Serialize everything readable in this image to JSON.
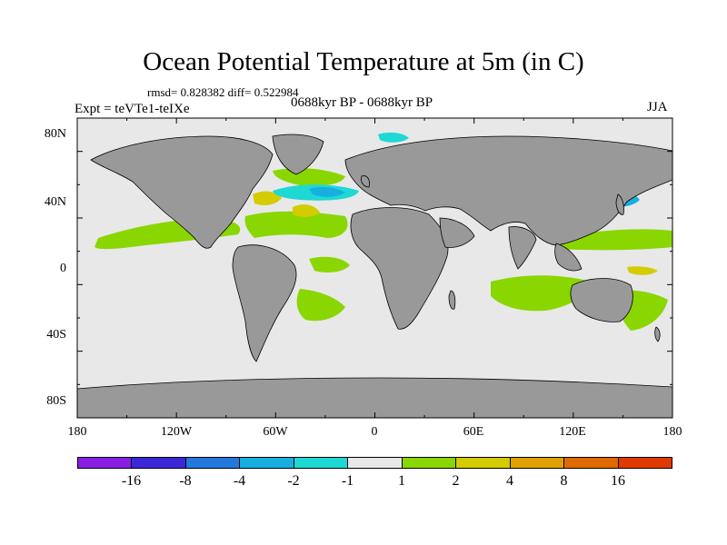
{
  "title": "Ocean Potential Temperature at 5m (in C)",
  "stats": "rmsd= 0.828382 diff= 0.522984",
  "period": "0688kyr BP - 0688kyr BP",
  "experiment": "Expt = teVTe1-teIXe",
  "season": "JJA",
  "axes": {
    "y_labels": [
      "80N",
      "40N",
      "0",
      "40S",
      "80S"
    ],
    "x_labels": [
      "180",
      "120W",
      "60W",
      "0",
      "60E",
      "120E",
      "180"
    ]
  },
  "colors": {
    "land": "#999999",
    "neutral_ocean": "#e8e8e8"
  },
  "colorbar": {
    "boxes": [
      "#8a1ee6",
      "#3c28d8",
      "#2478dc",
      "#18aee0",
      "#1ed8d4",
      "#e8e8e8",
      "#8ad600",
      "#d4cc00",
      "#e0a000",
      "#e06a00",
      "#e03a00"
    ],
    "labels": [
      "-16",
      "-8",
      "-4",
      "-2",
      "-1",
      "1",
      "2",
      "4",
      "8",
      "16"
    ]
  },
  "map_data": {
    "type": "filled-contour",
    "projection": "cylindrical-equidistant",
    "lon_range": [
      -180,
      180
    ],
    "lat_range": [
      -90,
      90
    ],
    "regions": [
      {
        "name": "north-atlantic-cold-anomaly",
        "color": "#1ed8d4"
      },
      {
        "name": "north-atlantic-subpolar",
        "color": "#18aee0"
      },
      {
        "name": "arctic-cold-anomaly",
        "color": "#1ed8d4"
      },
      {
        "name": "kuroshio-cold-anomaly",
        "color": "#18aee0"
      },
      {
        "name": "tropical-north-pacific-warm",
        "color": "#8ad600"
      },
      {
        "name": "tropical-atlantic-warm",
        "color": "#8ad600"
      },
      {
        "name": "indian-ocean-warm",
        "color": "#8ad600"
      },
      {
        "name": "south-atlantic-warm",
        "color": "#8ad600"
      },
      {
        "name": "gulf-stream-warm",
        "color": "#d4cc00"
      },
      {
        "name": "red-sea-warm",
        "color": "#d4cc00"
      },
      {
        "name": "west-pacific-warm",
        "color": "#d4cc00"
      }
    ]
  }
}
